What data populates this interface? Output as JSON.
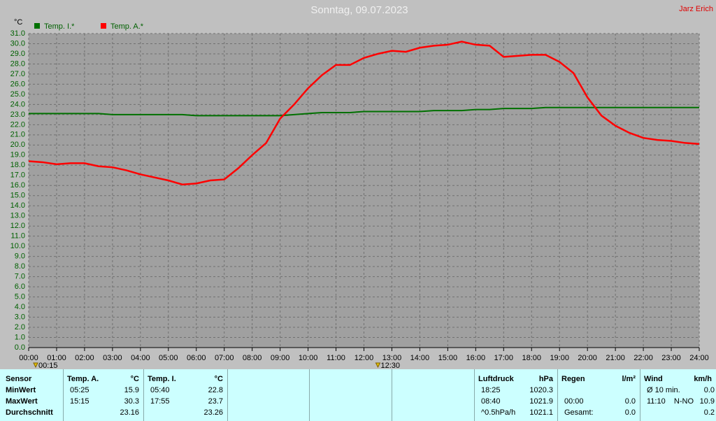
{
  "chart_data": {
    "type": "line",
    "title": "Sonntag, 09.07.2023",
    "annotation": "Jarz Erich",
    "y_label": "°C",
    "x": [
      0,
      0.5,
      1,
      1.5,
      2,
      2.5,
      3,
      3.5,
      4,
      4.5,
      5,
      5.5,
      6,
      6.5,
      7,
      7.5,
      8,
      8.5,
      9,
      9.5,
      10,
      10.5,
      11,
      11.5,
      12,
      12.5,
      13,
      13.5,
      14,
      14.5,
      15,
      15.5,
      16,
      16.5,
      17,
      17.5,
      18,
      18.5,
      19,
      19.5,
      20,
      20.5,
      21,
      21.5,
      22,
      22.5,
      23,
      23.5,
      24
    ],
    "series": [
      {
        "name": "Temp. I.*",
        "color": "#007000",
        "values": [
          23.1,
          23.1,
          23.1,
          23.1,
          23.1,
          23.1,
          23.0,
          23.0,
          23.0,
          23.0,
          23.0,
          23.0,
          22.9,
          22.9,
          22.9,
          22.9,
          22.9,
          22.9,
          22.9,
          23.0,
          23.1,
          23.2,
          23.2,
          23.2,
          23.3,
          23.3,
          23.3,
          23.3,
          23.3,
          23.4,
          23.4,
          23.4,
          23.5,
          23.5,
          23.6,
          23.6,
          23.6,
          23.7,
          23.7,
          23.7,
          23.7,
          23.7,
          23.7,
          23.7,
          23.7,
          23.7,
          23.7,
          23.7,
          23.7
        ]
      },
      {
        "name": "Temp. A.*",
        "color": "#ff0000",
        "values": [
          18.4,
          18.3,
          18.1,
          18.2,
          18.2,
          17.9,
          17.8,
          17.5,
          17.1,
          16.8,
          16.5,
          16.1,
          16.2,
          16.5,
          16.6,
          17.7,
          19.0,
          20.2,
          22.6,
          24.0,
          25.6,
          26.9,
          27.9,
          27.9,
          28.6,
          29.0,
          29.3,
          29.2,
          29.6,
          29.8,
          29.9,
          30.2,
          29.9,
          29.8,
          28.7,
          28.8,
          28.9,
          28.9,
          28.2,
          27.1,
          24.7,
          22.9,
          21.9,
          21.2,
          20.7,
          20.5,
          20.4,
          20.2,
          20.1
        ]
      }
    ],
    "xlim": [
      0,
      24
    ],
    "xticks": [
      {
        "value": 0,
        "label": "00:00"
      },
      {
        "value": 1,
        "label": "01:00"
      },
      {
        "value": 2,
        "label": "02:00"
      },
      {
        "value": 3,
        "label": "03:00"
      },
      {
        "value": 4,
        "label": "04:00"
      },
      {
        "value": 5,
        "label": "05:00"
      },
      {
        "value": 6,
        "label": "06:00"
      },
      {
        "value": 7,
        "label": "07:00"
      },
      {
        "value": 8,
        "label": "08:00"
      },
      {
        "value": 9,
        "label": "09:00"
      },
      {
        "value": 10,
        "label": "10:00"
      },
      {
        "value": 11,
        "label": "11:00"
      },
      {
        "value": 12,
        "label": "12:00"
      },
      {
        "value": 13,
        "label": "13:00"
      },
      {
        "value": 14,
        "label": "14:00"
      },
      {
        "value": 15,
        "label": "15:00"
      },
      {
        "value": 16,
        "label": "16:00"
      },
      {
        "value": 17,
        "label": "17:00"
      },
      {
        "value": 18,
        "label": "18:00"
      },
      {
        "value": 19,
        "label": "19:00"
      },
      {
        "value": 20,
        "label": "20:00"
      },
      {
        "value": 21,
        "label": "21:00"
      },
      {
        "value": 22,
        "label": "22:00"
      },
      {
        "value": 23,
        "label": "23:00"
      },
      {
        "value": 24,
        "label": "24:00"
      }
    ],
    "ylim": [
      0,
      31
    ],
    "yticks": [
      {
        "value": 0,
        "label": "0.0"
      },
      {
        "value": 1,
        "label": "1.0"
      },
      {
        "value": 2,
        "label": "2.0"
      },
      {
        "value": 3,
        "label": "3.0"
      },
      {
        "value": 4,
        "label": "4.0"
      },
      {
        "value": 5,
        "label": "5.0"
      },
      {
        "value": 6,
        "label": "6.0"
      },
      {
        "value": 7,
        "label": "7.0"
      },
      {
        "value": 8,
        "label": "8.0"
      },
      {
        "value": 9,
        "label": "9.0"
      },
      {
        "value": 10,
        "label": "10.0"
      },
      {
        "value": 11,
        "label": "11.0"
      },
      {
        "value": 12,
        "label": "12.0"
      },
      {
        "value": 13,
        "label": "13.0"
      },
      {
        "value": 14,
        "label": "14.0"
      },
      {
        "value": 15,
        "label": "15.0"
      },
      {
        "value": 16,
        "label": "16.0"
      },
      {
        "value": 17,
        "label": "17.0"
      },
      {
        "value": 18,
        "label": "18.0"
      },
      {
        "value": 19,
        "label": "19.0"
      },
      {
        "value": 20,
        "label": "20.0"
      },
      {
        "value": 21,
        "label": "21.0"
      },
      {
        "value": 22,
        "label": "22.0"
      },
      {
        "value": 23,
        "label": "23.0"
      },
      {
        "value": 24,
        "label": "24.0"
      },
      {
        "value": 25,
        "label": "25.0"
      },
      {
        "value": 26,
        "label": "26.0"
      },
      {
        "value": 27,
        "label": "27.0"
      },
      {
        "value": 28,
        "label": "28.0"
      },
      {
        "value": 29,
        "label": "29.0"
      },
      {
        "value": 30,
        "label": "30.0"
      },
      {
        "value": 31,
        "label": "31.0"
      }
    ],
    "markers": [
      {
        "value": 0.25,
        "label": "00:15"
      },
      {
        "value": 12.5,
        "label": "12:30"
      }
    ],
    "grid": true
  },
  "table": {
    "row_labels": [
      "Sensor",
      "MinWert",
      "MaxWert",
      "Durchschnitt"
    ],
    "panels": [
      {
        "title": "Temp. A.",
        "unit": "°C",
        "rows": [
          {
            "time": "05:25",
            "value": "15.9"
          },
          {
            "time": "15:15",
            "value": "30.3"
          },
          {
            "value": "23.16"
          }
        ]
      },
      {
        "title": "Temp. I.",
        "unit": "°C",
        "rows": [
          {
            "time": "05:40",
            "value": "22.8"
          },
          {
            "time": "17:55",
            "value": "23.7"
          },
          {
            "value": "23.26"
          }
        ]
      },
      {
        "title": "Luftdruck",
        "unit": "hPa",
        "rows": [
          {
            "time": "18:25",
            "value": "1020.3"
          },
          {
            "time": "08:40",
            "value": "1021.9"
          },
          {
            "time": "^0.5hPa/h",
            "value": "1021.1"
          }
        ]
      },
      {
        "title": "Regen",
        "unit": "l/m²",
        "rows": [
          {},
          {
            "time": "00:00",
            "value": "0.0"
          },
          {
            "time": "Gesamt:",
            "value": "0.0"
          }
        ]
      },
      {
        "title": "Wind",
        "unit": "km/h",
        "rows": [
          {
            "time": "Ø 10 min.",
            "value": "0.0"
          },
          {
            "time": "11:10",
            "dir": "N-NO",
            "value": "10.9"
          },
          {
            "value": "0.2"
          }
        ]
      }
    ]
  }
}
